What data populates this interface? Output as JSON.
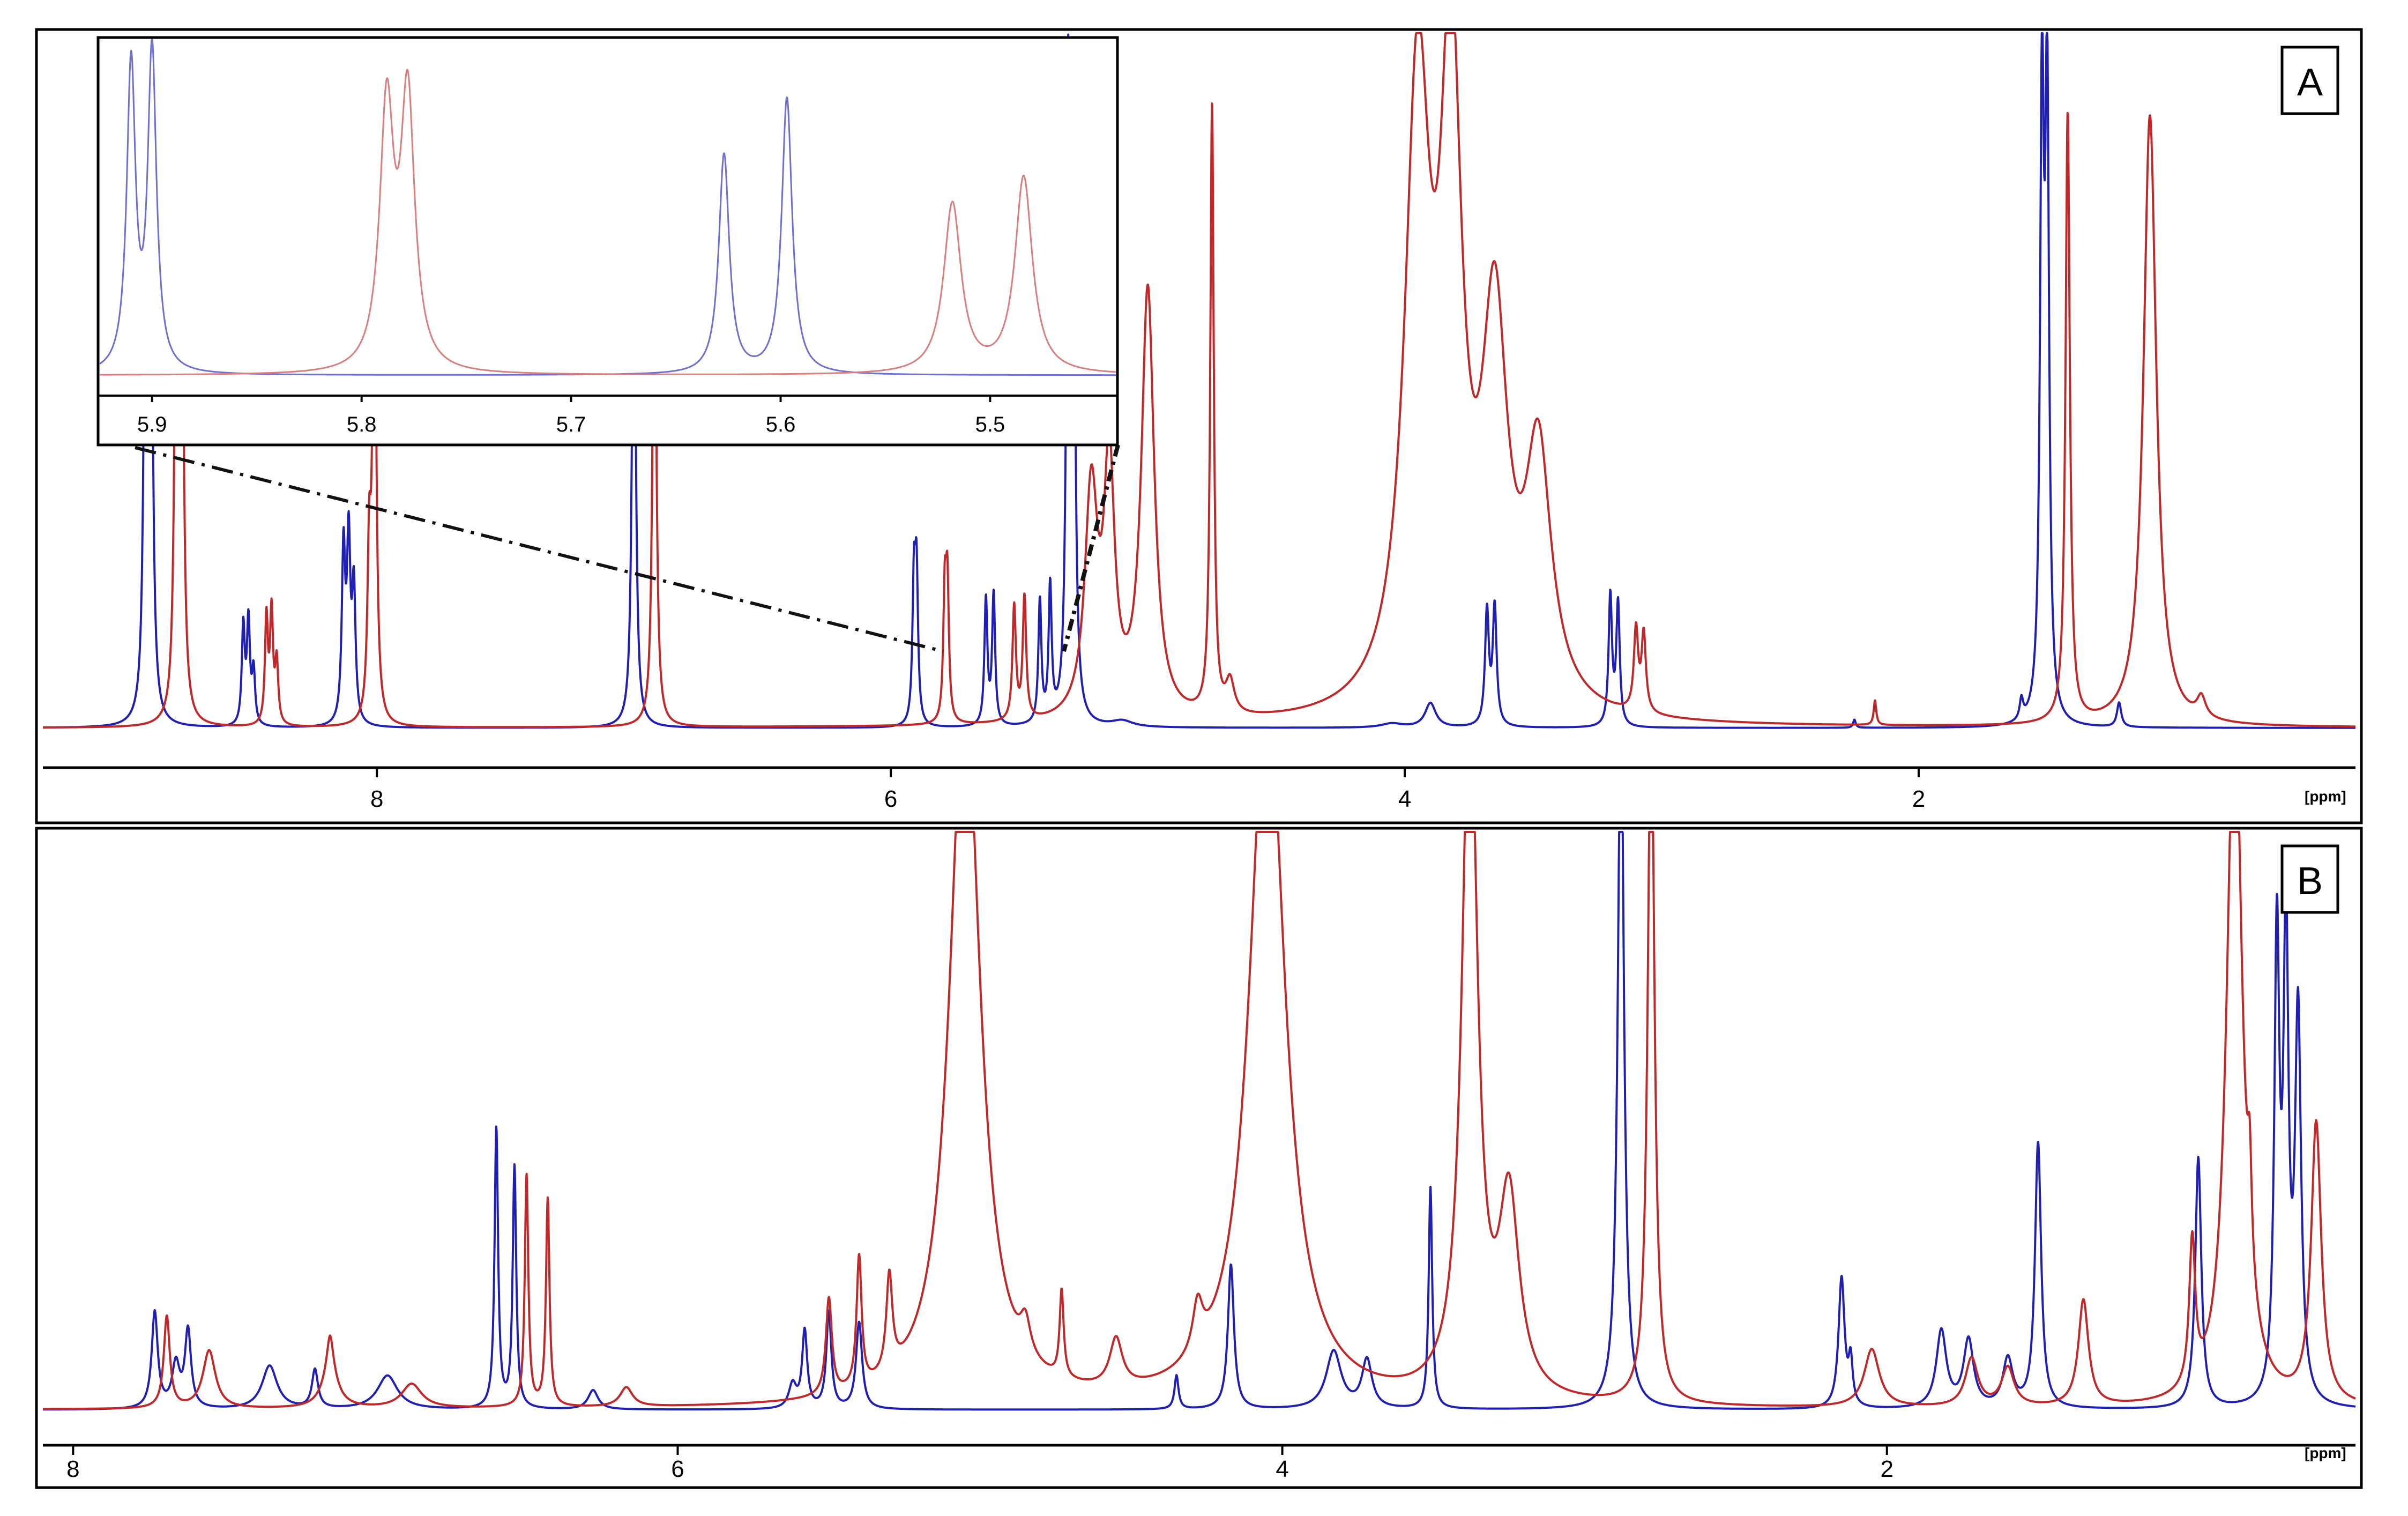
{
  "colors": {
    "sample_blue": "#1f1fb4",
    "sample_red": "#c0282a",
    "inset_blue": "#6f6fd0",
    "inset_red": "#d88080",
    "connector": "#111111",
    "axis": "#000000"
  },
  "chart_data": [
    {
      "panel": "A",
      "type": "line",
      "xlabel": "[ppm]",
      "x_reversed": true,
      "xlim": [
        9.3,
        0.3
      ],
      "ticks": [
        "8",
        "6",
        "4",
        "2"
      ],
      "tick_values": [
        8,
        6,
        4,
        2
      ],
      "ylim": [
        0,
        1
      ],
      "grid": false,
      "series": [
        {
          "color_key": "sample_blue",
          "peaks": [
            {
              "ppm": 8.9,
              "height": 1.35,
              "width": 0.008
            },
            {
              "ppm": 8.88,
              "height": 1.35,
              "width": 0.008
            },
            {
              "ppm": 8.52,
              "height": 0.24,
              "width": 0.007
            },
            {
              "ppm": 8.5,
              "height": 0.25,
              "width": 0.007
            },
            {
              "ppm": 8.48,
              "height": 0.13,
              "width": 0.007
            },
            {
              "ppm": 8.13,
              "height": 0.42,
              "width": 0.008
            },
            {
              "ppm": 8.11,
              "height": 0.43,
              "width": 0.008
            },
            {
              "ppm": 8.09,
              "height": 0.32,
              "width": 0.008
            },
            {
              "ppm": 7.0,
              "height": 1.4,
              "width": 0.008
            },
            {
              "ppm": 5.91,
              "height": 0.33,
              "width": 0.007
            },
            {
              "ppm": 5.9,
              "height": 0.35,
              "width": 0.007
            },
            {
              "ppm": 5.63,
              "height": 0.31,
              "width": 0.007
            },
            {
              "ppm": 5.6,
              "height": 0.32,
              "width": 0.007
            },
            {
              "ppm": 5.42,
              "height": 0.3,
              "width": 0.007
            },
            {
              "ppm": 5.38,
              "height": 0.33,
              "width": 0.007
            },
            {
              "ppm": 5.31,
              "height": 1.5,
              "width": 0.008
            },
            {
              "ppm": 5.29,
              "height": 1.4,
              "width": 0.008
            },
            {
              "ppm": 5.1,
              "height": 0.015,
              "width": 0.05
            },
            {
              "ppm": 4.05,
              "height": 0.01,
              "width": 0.05
            },
            {
              "ppm": 3.9,
              "height": 0.06,
              "width": 0.025
            },
            {
              "ppm": 3.68,
              "height": 0.28,
              "width": 0.009
            },
            {
              "ppm": 3.65,
              "height": 0.29,
              "width": 0.009
            },
            {
              "ppm": 3.2,
              "height": 0.32,
              "width": 0.008
            },
            {
              "ppm": 3.17,
              "height": 0.3,
              "width": 0.008
            },
            {
              "ppm": 2.25,
              "height": 0.02,
              "width": 0.006
            },
            {
              "ppm": 1.6,
              "height": 0.05,
              "width": 0.008
            },
            {
              "ppm": 1.52,
              "height": 1.5,
              "width": 0.009
            },
            {
              "ppm": 1.5,
              "height": 1.5,
              "width": 0.009
            },
            {
              "ppm": 1.22,
              "height": 0.06,
              "width": 0.01
            }
          ]
        },
        {
          "color_key": "sample_red",
          "peaks": [
            {
              "ppm": 8.78,
              "height": 1.35,
              "width": 0.008
            },
            {
              "ppm": 8.76,
              "height": 1.35,
              "width": 0.008
            },
            {
              "ppm": 8.43,
              "height": 0.26,
              "width": 0.007
            },
            {
              "ppm": 8.41,
              "height": 0.27,
              "width": 0.007
            },
            {
              "ppm": 8.39,
              "height": 0.15,
              "width": 0.007
            },
            {
              "ppm": 8.03,
              "height": 0.38,
              "width": 0.008
            },
            {
              "ppm": 8.01,
              "height": 1.35,
              "width": 0.008
            },
            {
              "ppm": 6.92,
              "height": 1.4,
              "width": 0.008
            },
            {
              "ppm": 5.79,
              "height": 0.3,
              "width": 0.007
            },
            {
              "ppm": 5.78,
              "height": 0.32,
              "width": 0.007
            },
            {
              "ppm": 5.52,
              "height": 0.28,
              "width": 0.008
            },
            {
              "ppm": 5.48,
              "height": 0.3,
              "width": 0.008
            },
            {
              "ppm": 5.22,
              "height": 0.55,
              "width": 0.03
            },
            {
              "ppm": 5.15,
              "height": 0.6,
              "width": 0.025
            },
            {
              "ppm": 5.0,
              "height": 1.05,
              "width": 0.03
            },
            {
              "ppm": 4.75,
              "height": 1.5,
              "width": 0.008
            },
            {
              "ppm": 4.68,
              "height": 0.08,
              "width": 0.02
            },
            {
              "ppm": 3.95,
              "height": 1.5,
              "width": 0.06
            },
            {
              "ppm": 3.82,
              "height": 1.5,
              "width": 0.05
            },
            {
              "ppm": 3.65,
              "height": 0.9,
              "width": 0.06
            },
            {
              "ppm": 3.48,
              "height": 0.6,
              "width": 0.06
            },
            {
              "ppm": 3.1,
              "height": 0.2,
              "width": 0.01
            },
            {
              "ppm": 3.07,
              "height": 0.19,
              "width": 0.01
            },
            {
              "ppm": 2.17,
              "height": 0.06,
              "width": 0.006
            },
            {
              "ppm": 1.42,
              "height": 1.5,
              "width": 0.01
            },
            {
              "ppm": 1.1,
              "height": 1.5,
              "width": 0.03
            },
            {
              "ppm": 0.9,
              "height": 0.05,
              "width": 0.02
            }
          ]
        }
      ]
    },
    {
      "panel": "A-inset",
      "type": "line",
      "x_reversed": true,
      "xlim": [
        5.925,
        5.44
      ],
      "ticks": [
        "5.9",
        "5.8",
        "5.7",
        "5.6",
        "5.5"
      ],
      "tick_values": [
        5.9,
        5.8,
        5.7,
        5.6,
        5.5
      ],
      "ylim": [
        0,
        1
      ],
      "grid": false,
      "series": [
        {
          "color_key": "inset_blue",
          "peaks": [
            {
              "ppm": 5.91,
              "height": 0.92,
              "width": 0.0025
            },
            {
              "ppm": 5.9,
              "height": 0.96,
              "width": 0.0025
            },
            {
              "ppm": 5.627,
              "height": 0.66,
              "width": 0.003
            },
            {
              "ppm": 5.597,
              "height": 0.83,
              "width": 0.003
            }
          ]
        },
        {
          "color_key": "inset_red",
          "peaks": [
            {
              "ppm": 5.788,
              "height": 0.78,
              "width": 0.004
            },
            {
              "ppm": 5.778,
              "height": 0.81,
              "width": 0.004
            },
            {
              "ppm": 5.518,
              "height": 0.51,
              "width": 0.005
            },
            {
              "ppm": 5.484,
              "height": 0.59,
              "width": 0.005
            }
          ]
        }
      ]
    },
    {
      "panel": "B",
      "type": "line",
      "xlabel": "[ppm]",
      "x_reversed": true,
      "xlim": [
        8.1,
        0.45
      ],
      "ticks": [
        "8",
        "6",
        "4",
        "2"
      ],
      "tick_values": [
        8,
        6,
        4,
        2
      ],
      "ylim": [
        0,
        1
      ],
      "grid": false,
      "series": [
        {
          "color_key": "sample_blue",
          "peaks": [
            {
              "ppm": 7.73,
              "height": 0.2,
              "width": 0.012
            },
            {
              "ppm": 7.66,
              "height": 0.09,
              "width": 0.015
            },
            {
              "ppm": 7.62,
              "height": 0.16,
              "width": 0.012
            },
            {
              "ppm": 7.35,
              "height": 0.09,
              "width": 0.03
            },
            {
              "ppm": 7.2,
              "height": 0.08,
              "width": 0.012
            },
            {
              "ppm": 6.96,
              "height": 0.07,
              "width": 0.04
            },
            {
              "ppm": 6.6,
              "height": 0.58,
              "width": 0.007
            },
            {
              "ppm": 6.54,
              "height": 0.5,
              "width": 0.007
            },
            {
              "ppm": 6.28,
              "height": 0.04,
              "width": 0.02
            },
            {
              "ppm": 5.62,
              "height": 0.05,
              "width": 0.015
            },
            {
              "ppm": 5.58,
              "height": 0.16,
              "width": 0.01
            },
            {
              "ppm": 5.5,
              "height": 0.2,
              "width": 0.01
            },
            {
              "ppm": 5.4,
              "height": 0.18,
              "width": 0.012
            },
            {
              "ppm": 4.35,
              "height": 0.07,
              "width": 0.008
            },
            {
              "ppm": 4.17,
              "height": 0.3,
              "width": 0.012
            },
            {
              "ppm": 3.83,
              "height": 0.12,
              "width": 0.03
            },
            {
              "ppm": 3.72,
              "height": 0.1,
              "width": 0.02
            },
            {
              "ppm": 3.51,
              "height": 0.46,
              "width": 0.007
            },
            {
              "ppm": 2.88,
              "height": 1.5,
              "width": 0.012
            },
            {
              "ppm": 2.15,
              "height": 0.27,
              "width": 0.012
            },
            {
              "ppm": 2.12,
              "height": 0.09,
              "width": 0.008
            },
            {
              "ppm": 1.82,
              "height": 0.16,
              "width": 0.02
            },
            {
              "ppm": 1.73,
              "height": 0.14,
              "width": 0.02
            },
            {
              "ppm": 1.6,
              "height": 0.1,
              "width": 0.02
            },
            {
              "ppm": 1.5,
              "height": 0.05,
              "width": 0.015
            },
            {
              "ppm": 1.5,
              "height": 0.5,
              "width": 0.012
            },
            {
              "ppm": 0.97,
              "height": 0.52,
              "width": 0.012
            },
            {
              "ppm": 0.71,
              "height": 0.95,
              "width": 0.01
            },
            {
              "ppm": 0.68,
              "height": 0.95,
              "width": 0.01
            },
            {
              "ppm": 0.64,
              "height": 0.8,
              "width": 0.012
            }
          ]
        },
        {
          "color_key": "sample_red",
          "peaks": [
            {
              "ppm": 7.69,
              "height": 0.19,
              "width": 0.012
            },
            {
              "ppm": 7.55,
              "height": 0.12,
              "width": 0.025
            },
            {
              "ppm": 7.15,
              "height": 0.08,
              "width": 0.03
            },
            {
              "ppm": 7.15,
              "height": 0.07,
              "width": 0.012
            },
            {
              "ppm": 6.88,
              "height": 0.05,
              "width": 0.04
            },
            {
              "ppm": 6.5,
              "height": 0.48,
              "width": 0.007
            },
            {
              "ppm": 6.43,
              "height": 0.43,
              "width": 0.007
            },
            {
              "ppm": 6.17,
              "height": 0.04,
              "width": 0.025
            },
            {
              "ppm": 5.5,
              "height": 0.2,
              "width": 0.012
            },
            {
              "ppm": 5.4,
              "height": 0.27,
              "width": 0.01
            },
            {
              "ppm": 5.3,
              "height": 0.2,
              "width": 0.012
            },
            {
              "ppm": 5.05,
              "height": 1.5,
              "width": 0.06
            },
            {
              "ppm": 4.85,
              "height": 0.07,
              "width": 0.02
            },
            {
              "ppm": 4.73,
              "height": 0.18,
              "width": 0.008
            },
            {
              "ppm": 4.55,
              "height": 0.1,
              "width": 0.025
            },
            {
              "ppm": 4.28,
              "height": 0.1,
              "width": 0.02
            },
            {
              "ppm": 4.05,
              "height": 1.5,
              "width": 0.07
            },
            {
              "ppm": 3.38,
              "height": 1.5,
              "width": 0.03
            },
            {
              "ppm": 3.25,
              "height": 0.4,
              "width": 0.04
            },
            {
              "ppm": 2.78,
              "height": 1.5,
              "width": 0.013
            },
            {
              "ppm": 2.05,
              "height": 0.12,
              "width": 0.03
            },
            {
              "ppm": 1.72,
              "height": 0.1,
              "width": 0.025
            },
            {
              "ppm": 1.6,
              "height": 0.08,
              "width": 0.025
            },
            {
              "ppm": 1.35,
              "height": 0.22,
              "width": 0.02
            },
            {
              "ppm": 0.99,
              "height": 0.3,
              "width": 0.012
            },
            {
              "ppm": 0.85,
              "height": 1.5,
              "width": 0.03
            },
            {
              "ppm": 0.8,
              "height": 0.2,
              "width": 0.008
            },
            {
              "ppm": 0.58,
              "height": 0.58,
              "width": 0.02
            }
          ]
        }
      ]
    }
  ],
  "panel_a": {
    "label": "A",
    "axis_unit": "[ppm]"
  },
  "panel_b": {
    "label": "B",
    "axis_unit": "[ppm]"
  }
}
